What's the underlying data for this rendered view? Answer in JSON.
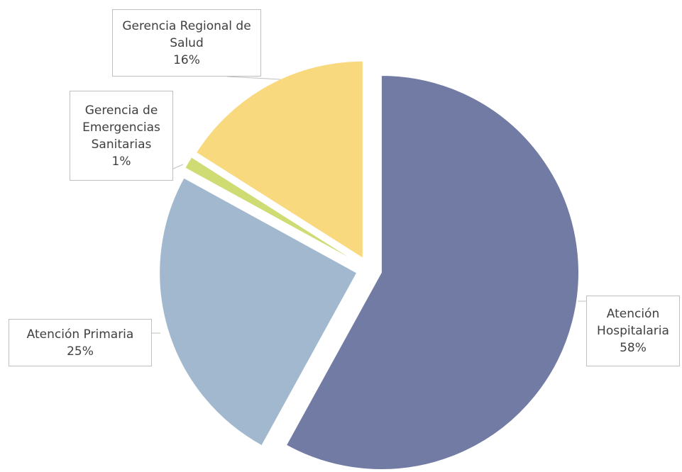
{
  "chart_data": {
    "type": "pie",
    "categories": [
      "Atención Hospitalaria",
      "Atención Primaria",
      "Gerencia de Emergencias Sanitarias",
      "Gerencia Regional de Salud"
    ],
    "values": [
      58,
      25,
      1,
      16
    ],
    "value_labels": [
      "58%",
      "25%",
      "1%",
      "16%"
    ],
    "colors": [
      "#717ba3",
      "#a2b8ce",
      "#cfdc74",
      "#f9d97e"
    ]
  }
}
